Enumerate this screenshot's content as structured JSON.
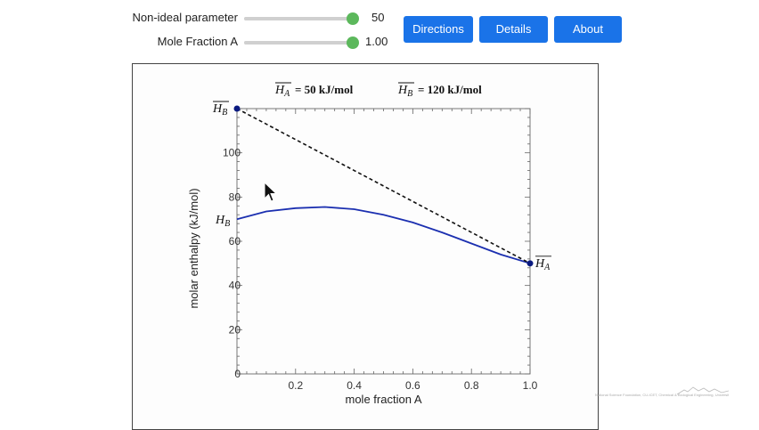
{
  "controls": {
    "nonideal": {
      "label": "Non-ideal parameter",
      "value": "50",
      "fraction": 1.0
    },
    "molefraction": {
      "label": "Mole Fraction A",
      "value": "1.00",
      "fraction": 1.0
    }
  },
  "buttons": {
    "directions": "Directions",
    "details": "Details",
    "about": "About"
  },
  "colors": {
    "button": "#1a73e8",
    "slider_thumb": "#5cb85c",
    "curve": "#1b2fb0",
    "point": "#0a1a80"
  },
  "chart_data": {
    "type": "line",
    "header": {
      "ha_sym": "H",
      "ha_sub": "A",
      "ha_val": "= 50 kJ/mol",
      "hb_sym": "H",
      "hb_sub": "B",
      "hb_val": "= 120 kJ/mol"
    },
    "xlabel": "mole fraction A",
    "ylabel": "molar enthalpy (kJ/mol)",
    "xlim": [
      0,
      1
    ],
    "ylim": [
      0,
      120
    ],
    "xticks": [
      "0.2",
      "0.4",
      "0.6",
      "0.8",
      "1.0"
    ],
    "yticks": [
      "0",
      "20",
      "40",
      "60",
      "80",
      "100"
    ],
    "hbar_b_point": [
      0,
      120
    ],
    "hbar_a_point": [
      1,
      50
    ],
    "h_b_label": {
      "sym": "H",
      "sub": "B",
      "y": 70
    },
    "series": [
      {
        "style": "solid",
        "points": [
          [
            0,
            70
          ],
          [
            0.1,
            73.5
          ],
          [
            0.2,
            75
          ],
          [
            0.3,
            75.5
          ],
          [
            0.4,
            74.5
          ],
          [
            0.5,
            72
          ],
          [
            0.6,
            68.5
          ],
          [
            0.7,
            64
          ],
          [
            0.8,
            59
          ],
          [
            0.9,
            54
          ],
          [
            1.0,
            50
          ]
        ]
      },
      {
        "style": "dashed",
        "points": [
          [
            0,
            120
          ],
          [
            1,
            50
          ]
        ]
      }
    ]
  },
  "watermark": {
    "text": "National Science Foundation, CU-ICET, Chemical & Biological Engineering, University of Colorado Boulder"
  }
}
